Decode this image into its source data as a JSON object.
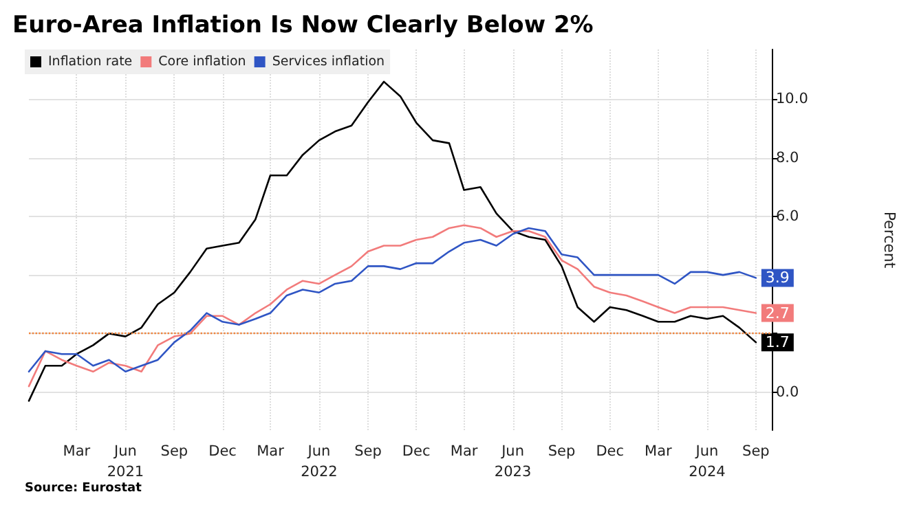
{
  "chart_data": {
    "type": "line",
    "title": "Euro-Area Inflation Is Now Clearly Below 2%",
    "ylabel": "Percent",
    "annotations": [
      "Source: Eurostat"
    ],
    "x": [
      "2020-12",
      "2021-01",
      "2021-02",
      "2021-03",
      "2021-04",
      "2021-05",
      "2021-06",
      "2021-07",
      "2021-08",
      "2021-09",
      "2021-10",
      "2021-11",
      "2021-12",
      "2022-01",
      "2022-02",
      "2022-03",
      "2022-04",
      "2022-05",
      "2022-06",
      "2022-07",
      "2022-08",
      "2022-09",
      "2022-10",
      "2022-11",
      "2022-12",
      "2023-01",
      "2023-02",
      "2023-03",
      "2023-04",
      "2023-05",
      "2023-06",
      "2023-07",
      "2023-08",
      "2023-09",
      "2023-10",
      "2023-11",
      "2023-12",
      "2024-01",
      "2024-02",
      "2024-03",
      "2024-04",
      "2024-05",
      "2024-06",
      "2024-07",
      "2024-08",
      "2024-09"
    ],
    "series": [
      {
        "name": "Inflation rate",
        "color": "#000000",
        "values": [
          -0.3,
          0.9,
          0.9,
          1.3,
          1.6,
          2.0,
          1.9,
          2.2,
          3.0,
          3.4,
          4.1,
          4.9,
          5.0,
          5.1,
          5.9,
          7.4,
          7.4,
          8.1,
          8.6,
          8.9,
          9.1,
          9.9,
          10.6,
          10.1,
          9.2,
          8.6,
          8.5,
          6.9,
          7.0,
          6.1,
          5.5,
          5.3,
          5.2,
          4.3,
          2.9,
          2.4,
          2.9,
          2.8,
          2.6,
          2.4,
          2.4,
          2.6,
          2.5,
          2.6,
          2.2,
          1.7
        ],
        "value_labels": [
          null,
          null,
          null,
          null,
          null,
          null,
          null,
          null,
          null,
          null,
          null,
          null,
          null,
          null,
          null,
          null,
          null,
          null,
          null,
          null,
          null,
          null,
          null,
          null,
          null,
          null,
          null,
          null,
          null,
          null,
          null,
          null,
          null,
          null,
          null,
          null,
          null,
          null,
          null,
          null,
          null,
          null,
          null,
          null,
          null,
          "1.7"
        ]
      },
      {
        "name": "Core inflation",
        "color": "#f27b7b",
        "values": [
          0.2,
          1.4,
          1.1,
          0.9,
          0.7,
          1.0,
          0.9,
          0.7,
          1.6,
          1.9,
          2.0,
          2.6,
          2.6,
          2.3,
          2.7,
          3.0,
          3.5,
          3.8,
          3.7,
          4.0,
          4.3,
          4.8,
          5.0,
          5.0,
          5.2,
          5.3,
          5.6,
          5.7,
          5.6,
          5.3,
          5.5,
          5.5,
          5.3,
          4.5,
          4.2,
          3.6,
          3.4,
          3.3,
          3.1,
          2.9,
          2.7,
          2.9,
          2.9,
          2.9,
          2.8,
          2.7
        ],
        "value_labels": [
          null,
          null,
          null,
          null,
          null,
          null,
          null,
          null,
          null,
          null,
          null,
          null,
          null,
          null,
          null,
          null,
          null,
          null,
          null,
          null,
          null,
          null,
          null,
          null,
          null,
          null,
          null,
          null,
          null,
          null,
          null,
          null,
          null,
          null,
          null,
          null,
          null,
          null,
          null,
          null,
          null,
          null,
          null,
          null,
          null,
          "2.7"
        ]
      },
      {
        "name": "Services inflation",
        "color": "#2f55c4",
        "values": [
          0.7,
          1.4,
          1.3,
          1.3,
          0.9,
          1.1,
          0.7,
          0.9,
          1.1,
          1.7,
          2.1,
          2.7,
          2.4,
          2.3,
          2.5,
          2.7,
          3.3,
          3.5,
          3.4,
          3.7,
          3.8,
          4.3,
          4.3,
          4.2,
          4.4,
          4.4,
          4.8,
          5.1,
          5.2,
          5.0,
          5.4,
          5.6,
          5.5,
          4.7,
          4.6,
          4.0,
          4.0,
          4.0,
          4.0,
          4.0,
          3.7,
          4.1,
          4.1,
          4.0,
          4.1,
          3.9
        ],
        "value_labels": [
          null,
          null,
          null,
          null,
          null,
          null,
          null,
          null,
          null,
          null,
          null,
          null,
          null,
          null,
          null,
          null,
          null,
          null,
          null,
          null,
          null,
          null,
          null,
          null,
          null,
          null,
          null,
          null,
          null,
          null,
          null,
          null,
          null,
          null,
          null,
          null,
          null,
          null,
          null,
          null,
          null,
          null,
          null,
          null,
          null,
          "3.9"
        ]
      }
    ],
    "xlim": [
      "2020-12",
      "2024-10"
    ],
    "xticks": [
      {
        "value": "2021-03",
        "label": "Mar"
      },
      {
        "value": "2021-06",
        "label": "Jun\n2021"
      },
      {
        "value": "2021-09",
        "label": "Sep"
      },
      {
        "value": "2021-12",
        "label": "Dec"
      },
      {
        "value": "2022-03",
        "label": "Mar"
      },
      {
        "value": "2022-06",
        "label": "Jun\n2022"
      },
      {
        "value": "2022-09",
        "label": "Sep"
      },
      {
        "value": "2022-12",
        "label": "Dec"
      },
      {
        "value": "2023-03",
        "label": "Mar"
      },
      {
        "value": "2023-06",
        "label": "Jun\n2023"
      },
      {
        "value": "2023-09",
        "label": "Sep"
      },
      {
        "value": "2023-12",
        "label": "Dec"
      },
      {
        "value": "2024-03",
        "label": "Mar"
      },
      {
        "value": "2024-06",
        "label": "Jun\n2024"
      },
      {
        "value": "2024-09",
        "label": "Sep"
      }
    ],
    "ylim": [
      -1.3,
      11.7
    ],
    "yticks": [
      {
        "value": 0,
        "label": "0.0"
      },
      {
        "value": 2,
        "label": null
      },
      {
        "value": 4,
        "label": null
      },
      {
        "value": 6,
        "label": "6.0"
      },
      {
        "value": 8,
        "label": "8.0"
      },
      {
        "value": 10,
        "label": "10.0"
      }
    ],
    "ref_lines": [
      {
        "axis": "y",
        "value": 2,
        "label": null,
        "color": "#f0843c",
        "line_style": "dotted"
      }
    ],
    "grid": true,
    "legend": "top left",
    "marker": "none",
    "line_style": "solid"
  }
}
